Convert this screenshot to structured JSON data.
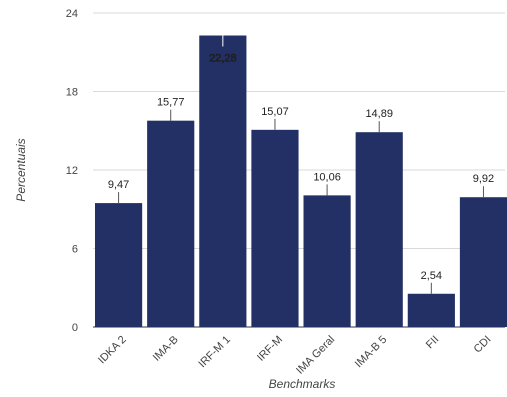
{
  "chart_data": {
    "type": "bar",
    "title": "",
    "xlabel": "Benchmarks",
    "ylabel": "Percentuais",
    "categories": [
      "IDKA 2",
      "IMA-B",
      "IRF-M 1",
      "IRF-M",
      "IMA Geral",
      "IMA-B 5",
      "FII",
      "CDI"
    ],
    "values": [
      9.47,
      15.77,
      22.28,
      15.07,
      10.06,
      14.89,
      2.54,
      9.92
    ],
    "value_labels": [
      "9,47",
      "15,77",
      "22,28",
      "15,07",
      "10,06",
      "14,89",
      "2,54",
      "9,92"
    ],
    "yticks": [
      "0",
      "6",
      "12",
      "18",
      "24"
    ],
    "ytick_values": [
      0,
      6,
      12,
      18,
      24
    ],
    "ylim": [
      0,
      24
    ],
    "grid": true,
    "legend": "none",
    "bar_color": "#233065",
    "grid_color": "#d9d9d9"
  }
}
